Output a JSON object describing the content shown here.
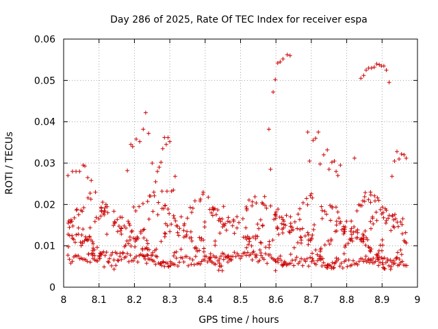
{
  "colors": {
    "series": "#cc0000",
    "grid": "#a0a0a0",
    "axis": "#000000",
    "background": "#ffffff"
  },
  "chart_data": {
    "type": "scatter",
    "title": "Day 286 of 2025, Rate Of TEC Index for receiver espa",
    "xlabel": "GPS time / hours",
    "ylabel": "ROTI / TECUs",
    "xlim": [
      8,
      9
    ],
    "ylim": [
      0,
      0.06
    ],
    "grid": true,
    "marker": "plus",
    "xticks": [
      8,
      8.1,
      8.2,
      8.3,
      8.4,
      8.5,
      8.6,
      8.7,
      8.8,
      8.9,
      9
    ],
    "xtick_labels": [
      "8",
      "8.1",
      "8.2",
      "8.3",
      "8.4",
      "8.5",
      "8.6",
      "8.7",
      "8.8",
      "8.9",
      "9"
    ],
    "yticks": [
      0,
      0.01,
      0.02,
      0.03,
      0.04,
      0.05,
      0.06
    ],
    "ytick_labels": [
      "0",
      "0.01",
      "0.02",
      "0.03",
      "0.04",
      "0.05",
      "0.06"
    ],
    "band_center_points": [
      [
        8.0,
        0.0065
      ],
      [
        8.1,
        0.0075
      ],
      [
        8.2,
        0.007
      ],
      [
        8.3,
        0.006
      ],
      [
        8.4,
        0.0065
      ],
      [
        8.5,
        0.008
      ],
      [
        8.6,
        0.0065
      ],
      [
        8.7,
        0.006
      ],
      [
        8.8,
        0.0055
      ],
      [
        8.9,
        0.006
      ],
      [
        8.97,
        0.0055
      ]
    ],
    "band_spread": 0.0012,
    "background_count": 560,
    "background_range": [
      0.004,
      0.021
    ],
    "extra_points": [
      [
        8.012,
        0.027
      ],
      [
        8.025,
        0.028
      ],
      [
        8.035,
        0.028
      ],
      [
        8.045,
        0.028
      ],
      [
        8.055,
        0.0295
      ],
      [
        8.06,
        0.0293
      ],
      [
        8.068,
        0.0265
      ],
      [
        8.078,
        0.0258
      ],
      [
        8.18,
        0.0282
      ],
      [
        8.19,
        0.0345
      ],
      [
        8.195,
        0.034
      ],
      [
        8.205,
        0.0358
      ],
      [
        8.215,
        0.0352
      ],
      [
        8.225,
        0.0382
      ],
      [
        8.232,
        0.0422
      ],
      [
        8.24,
        0.0372
      ],
      [
        8.25,
        0.03
      ],
      [
        8.255,
        0.023
      ],
      [
        8.26,
        0.0255
      ],
      [
        8.265,
        0.028
      ],
      [
        8.27,
        0.029
      ],
      [
        8.275,
        0.0302
      ],
      [
        8.278,
        0.0232
      ],
      [
        8.28,
        0.0335
      ],
      [
        8.285,
        0.0362
      ],
      [
        8.29,
        0.0345
      ],
      [
        8.292,
        0.0232
      ],
      [
        8.295,
        0.0362
      ],
      [
        8.3,
        0.0352
      ],
      [
        8.305,
        0.0232
      ],
      [
        8.31,
        0.0235
      ],
      [
        8.315,
        0.0268
      ],
      [
        8.58,
        0.0382
      ],
      [
        8.585,
        0.0285
      ],
      [
        8.592,
        0.0472
      ],
      [
        8.598,
        0.0502
      ],
      [
        8.605,
        0.0542
      ],
      [
        8.612,
        0.0545
      ],
      [
        8.62,
        0.0552
      ],
      [
        8.632,
        0.0562
      ],
      [
        8.64,
        0.056
      ],
      [
        8.69,
        0.0375
      ],
      [
        8.695,
        0.0305
      ],
      [
        8.705,
        0.0355
      ],
      [
        8.712,
        0.036
      ],
      [
        8.72,
        0.0375
      ],
      [
        8.725,
        0.0298
      ],
      [
        8.735,
        0.032
      ],
      [
        8.745,
        0.0332
      ],
      [
        8.75,
        0.0285
      ],
      [
        8.758,
        0.0302
      ],
      [
        8.765,
        0.0305
      ],
      [
        8.77,
        0.028
      ],
      [
        8.775,
        0.027
      ],
      [
        8.782,
        0.0295
      ],
      [
        8.822,
        0.0312
      ],
      [
        8.84,
        0.0505
      ],
      [
        8.848,
        0.0512
      ],
      [
        8.855,
        0.0525
      ],
      [
        8.862,
        0.053
      ],
      [
        8.87,
        0.053
      ],
      [
        8.878,
        0.0532
      ],
      [
        8.885,
        0.054
      ],
      [
        8.892,
        0.0538
      ],
      [
        8.898,
        0.0535
      ],
      [
        8.905,
        0.0535
      ],
      [
        8.912,
        0.0525
      ],
      [
        8.92,
        0.0495
      ],
      [
        8.928,
        0.0268
      ],
      [
        8.935,
        0.0305
      ],
      [
        8.942,
        0.0328
      ],
      [
        8.948,
        0.031
      ],
      [
        8.955,
        0.0322
      ],
      [
        8.962,
        0.032
      ],
      [
        8.968,
        0.0312
      ]
    ]
  }
}
